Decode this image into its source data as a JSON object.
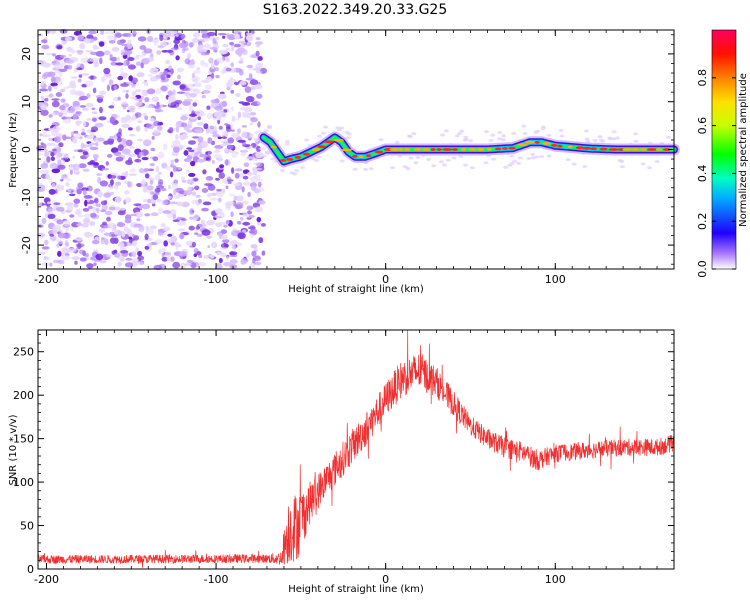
{
  "title": "S163.2022.349.20.33.G25",
  "colors": {
    "snr_line": "#f03030",
    "noise_purple": "#7a2ee8",
    "frame": "#000000"
  },
  "chart_data": [
    {
      "type": "heatmap",
      "name": "spectrogram",
      "xlabel": "Height of straight line (km)",
      "ylabel": "Frequency (Hz)",
      "xlim": [
        -205,
        170
      ],
      "ylim": [
        -25,
        25
      ],
      "xticks": [
        -200,
        -100,
        0,
        100
      ],
      "yticks": [
        -20,
        -10,
        0,
        10,
        20
      ],
      "noise_region_x": [
        -205,
        -72
      ],
      "signal_trace": {
        "x": [
          -72,
          -68,
          -64,
          -60,
          -56,
          -50,
          -44,
          -38,
          -34,
          -30,
          -26,
          -22,
          -18,
          -12,
          -6,
          0,
          10,
          20,
          40,
          60,
          75,
          85,
          92,
          100,
          110,
          120,
          135,
          150,
          170
        ],
        "hz": [
          2.5,
          1.5,
          -0.5,
          -2.5,
          -2,
          -1.5,
          -0.5,
          0.5,
          1.5,
          2.5,
          1.5,
          -0.5,
          -1.5,
          -1.5,
          -0.8,
          0,
          0,
          0,
          0,
          0,
          0.3,
          1.5,
          1.5,
          0.8,
          0.5,
          0.2,
          0,
          0,
          0
        ]
      }
    },
    {
      "type": "colorbar",
      "label": "Normalized spectral amplitude",
      "range": [
        0,
        1
      ],
      "ticks": [
        "0.0",
        "0.2",
        "0.4",
        "0.6",
        "0.8"
      ]
    },
    {
      "type": "line",
      "name": "snr",
      "xlabel": "Height of straight line (km)",
      "ylabel": "SNR (10 * v/v)",
      "xlim": [
        -205,
        170
      ],
      "ylim": [
        0,
        275
      ],
      "xticks": [
        -200,
        -100,
        0,
        100
      ],
      "yticks": [
        0,
        50,
        100,
        150,
        200,
        250
      ],
      "envelope": {
        "x": [
          -205,
          -70,
          -62,
          -57,
          -52,
          -45,
          -38,
          -30,
          -20,
          -10,
          0,
          10,
          20,
          30,
          40,
          50,
          60,
          70,
          80,
          90,
          100,
          120,
          140,
          160,
          170
        ],
        "mean": [
          11,
          12,
          12,
          45,
          50,
          75,
          95,
          115,
          140,
          165,
          195,
          220,
          228,
          215,
          190,
          165,
          150,
          140,
          135,
          125,
          133,
          137,
          140,
          140,
          145
        ],
        "spread": [
          5,
          5,
          8,
          40,
          40,
          25,
          20,
          20,
          20,
          20,
          20,
          22,
          22,
          18,
          15,
          12,
          12,
          12,
          12,
          12,
          10,
          10,
          10,
          10,
          10
        ]
      }
    }
  ]
}
